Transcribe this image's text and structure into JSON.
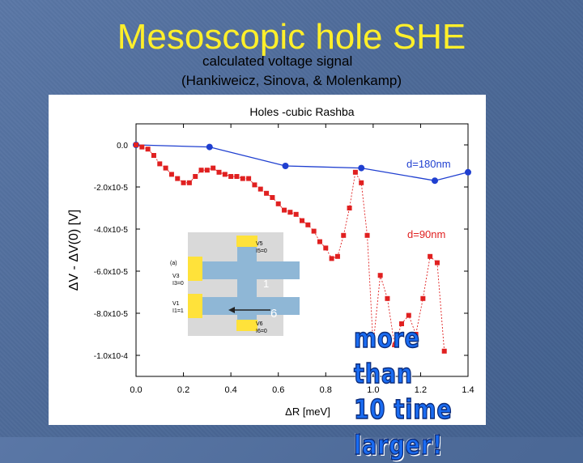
{
  "slide": {
    "title": "Mesoscopic hole SHE",
    "subtitle": "calculated voltage signal",
    "citation": "(Hankiweicz, Sinova, & Molenkamp)",
    "callout": [
      "more than",
      "10 time",
      "larger!"
    ]
  },
  "inset": {
    "label_a": "(a)",
    "terminals": [
      "V5",
      "I5=0",
      "V3",
      "I3=0",
      "V1",
      "I1=1",
      "V6",
      "I6=0"
    ],
    "digit_1": "1",
    "digit_6": "6"
  },
  "chart_data": {
    "type": "line",
    "title": "Holes -cubic Rashba",
    "xlabel": "ΔR [meV]",
    "ylabel": "ΔV - ΔV(0)  [V]",
    "xlim": [
      0.0,
      1.4
    ],
    "ylim": [
      -0.00011,
      1e-05
    ],
    "xticks": [
      0.0,
      0.2,
      0.4,
      0.6,
      0.8,
      1.0,
      1.2,
      1.4
    ],
    "xtick_labels": [
      "0.0",
      "0.2",
      "0.4",
      "0.6",
      "0.8",
      "1.0",
      "1.2",
      "1.4"
    ],
    "yticks": [
      0.0,
      -2e-05,
      -4e-05,
      -6e-05,
      -8e-05,
      -0.0001
    ],
    "ytick_labels": [
      "0.0",
      "-2.0x10-5",
      "-4.0x10-5",
      "-6.0x10-5",
      "-8.0x10-5",
      "-1.0x10-4"
    ],
    "series": [
      {
        "name": "d=180nm",
        "color": "#1f3fd0",
        "marker": "circle",
        "x": [
          0.0,
          0.31,
          0.63,
          0.95,
          1.26,
          1.4
        ],
        "y": [
          0.0,
          -1e-06,
          -1e-05,
          -1.1e-05,
          -1.7e-05,
          -1.3e-05
        ]
      },
      {
        "name": "d=90nm",
        "color": "#e02020",
        "marker": "square",
        "x": [
          0.0,
          0.025,
          0.05,
          0.075,
          0.1,
          0.125,
          0.15,
          0.175,
          0.2,
          0.225,
          0.25,
          0.275,
          0.3,
          0.325,
          0.35,
          0.375,
          0.4,
          0.425,
          0.45,
          0.475,
          0.5,
          0.525,
          0.55,
          0.575,
          0.6,
          0.625,
          0.65,
          0.675,
          0.7,
          0.725,
          0.75,
          0.775,
          0.8,
          0.825,
          0.85,
          0.875,
          0.9,
          0.925,
          0.95,
          0.975,
          1.0,
          1.03,
          1.06,
          1.09,
          1.12,
          1.15,
          1.18,
          1.21,
          1.24,
          1.27,
          1.3
        ],
        "y": [
          0.0,
          -1e-06,
          -2e-06,
          -5e-06,
          -9e-06,
          -1.1e-05,
          -1.4e-05,
          -1.6e-05,
          -1.8e-05,
          -1.8e-05,
          -1.5e-05,
          -1.2e-05,
          -1.2e-05,
          -1.1e-05,
          -1.3e-05,
          -1.4e-05,
          -1.5e-05,
          -1.5e-05,
          -1.6e-05,
          -1.6e-05,
          -1.9e-05,
          -2.1e-05,
          -2.3e-05,
          -2.5e-05,
          -2.8e-05,
          -3.1e-05,
          -3.2e-05,
          -3.3e-05,
          -3.6e-05,
          -3.8e-05,
          -4.1e-05,
          -4.6e-05,
          -4.9e-05,
          -5.4e-05,
          -5.3e-05,
          -4.3e-05,
          -3e-05,
          -1.3e-05,
          -1.8e-05,
          -4.3e-05,
          -9.5e-05,
          -6.2e-05,
          -7.3e-05,
          -9.5e-05,
          -8.5e-05,
          -8.1e-05,
          -9e-05,
          -7.3e-05,
          -5.3e-05,
          -5.6e-05,
          -9.8e-05
        ]
      }
    ],
    "annotations": [
      "d=180nm",
      "d=90nm"
    ]
  }
}
